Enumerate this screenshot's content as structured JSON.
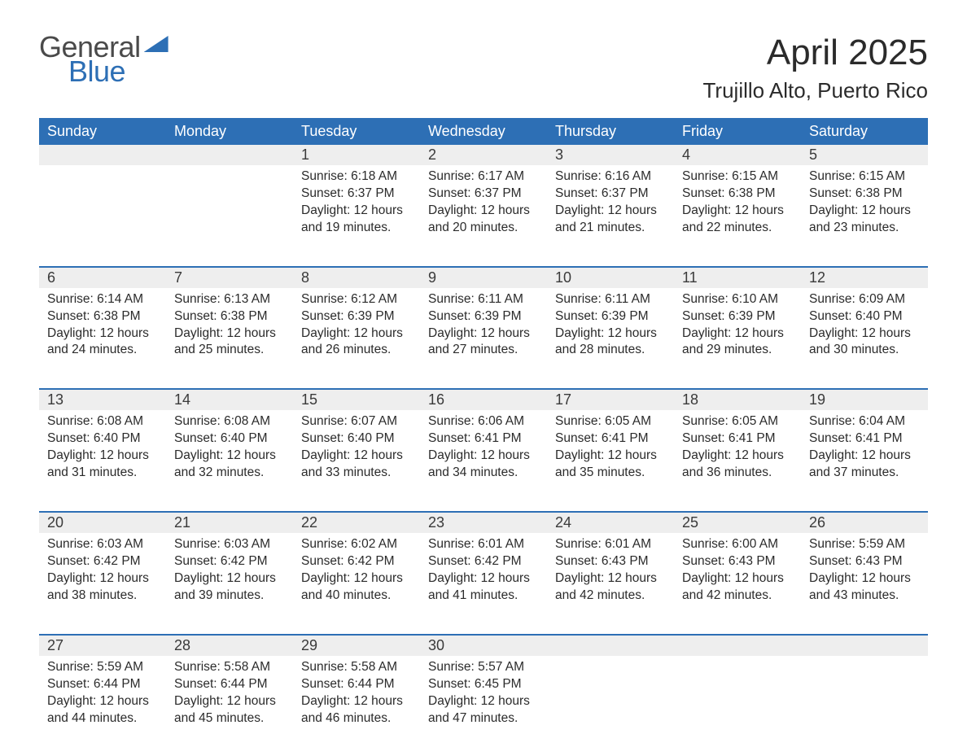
{
  "brand": {
    "word1": "General",
    "word2": "Blue"
  },
  "colors": {
    "brand_blue": "#2d6fb5",
    "brand_gray": "#4a4a4a",
    "text": "#2b2b2b",
    "daynum_bg": "#eeeeee",
    "bg": "#ffffff"
  },
  "header": {
    "month_title": "April 2025",
    "location": "Trujillo Alto, Puerto Rico"
  },
  "days_of_week": [
    "Sunday",
    "Monday",
    "Tuesday",
    "Wednesday",
    "Thursday",
    "Friday",
    "Saturday"
  ],
  "weeks": [
    [
      null,
      null,
      {
        "n": "1",
        "sunrise": "Sunrise: 6:18 AM",
        "sunset": "Sunset: 6:37 PM",
        "daylight": "Daylight: 12 hours and 19 minutes."
      },
      {
        "n": "2",
        "sunrise": "Sunrise: 6:17 AM",
        "sunset": "Sunset: 6:37 PM",
        "daylight": "Daylight: 12 hours and 20 minutes."
      },
      {
        "n": "3",
        "sunrise": "Sunrise: 6:16 AM",
        "sunset": "Sunset: 6:37 PM",
        "daylight": "Daylight: 12 hours and 21 minutes."
      },
      {
        "n": "4",
        "sunrise": "Sunrise: 6:15 AM",
        "sunset": "Sunset: 6:38 PM",
        "daylight": "Daylight: 12 hours and 22 minutes."
      },
      {
        "n": "5",
        "sunrise": "Sunrise: 6:15 AM",
        "sunset": "Sunset: 6:38 PM",
        "daylight": "Daylight: 12 hours and 23 minutes."
      }
    ],
    [
      {
        "n": "6",
        "sunrise": "Sunrise: 6:14 AM",
        "sunset": "Sunset: 6:38 PM",
        "daylight": "Daylight: 12 hours and 24 minutes."
      },
      {
        "n": "7",
        "sunrise": "Sunrise: 6:13 AM",
        "sunset": "Sunset: 6:38 PM",
        "daylight": "Daylight: 12 hours and 25 minutes."
      },
      {
        "n": "8",
        "sunrise": "Sunrise: 6:12 AM",
        "sunset": "Sunset: 6:39 PM",
        "daylight": "Daylight: 12 hours and 26 minutes."
      },
      {
        "n": "9",
        "sunrise": "Sunrise: 6:11 AM",
        "sunset": "Sunset: 6:39 PM",
        "daylight": "Daylight: 12 hours and 27 minutes."
      },
      {
        "n": "10",
        "sunrise": "Sunrise: 6:11 AM",
        "sunset": "Sunset: 6:39 PM",
        "daylight": "Daylight: 12 hours and 28 minutes."
      },
      {
        "n": "11",
        "sunrise": "Sunrise: 6:10 AM",
        "sunset": "Sunset: 6:39 PM",
        "daylight": "Daylight: 12 hours and 29 minutes."
      },
      {
        "n": "12",
        "sunrise": "Sunrise: 6:09 AM",
        "sunset": "Sunset: 6:40 PM",
        "daylight": "Daylight: 12 hours and 30 minutes."
      }
    ],
    [
      {
        "n": "13",
        "sunrise": "Sunrise: 6:08 AM",
        "sunset": "Sunset: 6:40 PM",
        "daylight": "Daylight: 12 hours and 31 minutes."
      },
      {
        "n": "14",
        "sunrise": "Sunrise: 6:08 AM",
        "sunset": "Sunset: 6:40 PM",
        "daylight": "Daylight: 12 hours and 32 minutes."
      },
      {
        "n": "15",
        "sunrise": "Sunrise: 6:07 AM",
        "sunset": "Sunset: 6:40 PM",
        "daylight": "Daylight: 12 hours and 33 minutes."
      },
      {
        "n": "16",
        "sunrise": "Sunrise: 6:06 AM",
        "sunset": "Sunset: 6:41 PM",
        "daylight": "Daylight: 12 hours and 34 minutes."
      },
      {
        "n": "17",
        "sunrise": "Sunrise: 6:05 AM",
        "sunset": "Sunset: 6:41 PM",
        "daylight": "Daylight: 12 hours and 35 minutes."
      },
      {
        "n": "18",
        "sunrise": "Sunrise: 6:05 AM",
        "sunset": "Sunset: 6:41 PM",
        "daylight": "Daylight: 12 hours and 36 minutes."
      },
      {
        "n": "19",
        "sunrise": "Sunrise: 6:04 AM",
        "sunset": "Sunset: 6:41 PM",
        "daylight": "Daylight: 12 hours and 37 minutes."
      }
    ],
    [
      {
        "n": "20",
        "sunrise": "Sunrise: 6:03 AM",
        "sunset": "Sunset: 6:42 PM",
        "daylight": "Daylight: 12 hours and 38 minutes."
      },
      {
        "n": "21",
        "sunrise": "Sunrise: 6:03 AM",
        "sunset": "Sunset: 6:42 PM",
        "daylight": "Daylight: 12 hours and 39 minutes."
      },
      {
        "n": "22",
        "sunrise": "Sunrise: 6:02 AM",
        "sunset": "Sunset: 6:42 PM",
        "daylight": "Daylight: 12 hours and 40 minutes."
      },
      {
        "n": "23",
        "sunrise": "Sunrise: 6:01 AM",
        "sunset": "Sunset: 6:42 PM",
        "daylight": "Daylight: 12 hours and 41 minutes."
      },
      {
        "n": "24",
        "sunrise": "Sunrise: 6:01 AM",
        "sunset": "Sunset: 6:43 PM",
        "daylight": "Daylight: 12 hours and 42 minutes."
      },
      {
        "n": "25",
        "sunrise": "Sunrise: 6:00 AM",
        "sunset": "Sunset: 6:43 PM",
        "daylight": "Daylight: 12 hours and 42 minutes."
      },
      {
        "n": "26",
        "sunrise": "Sunrise: 5:59 AM",
        "sunset": "Sunset: 6:43 PM",
        "daylight": "Daylight: 12 hours and 43 minutes."
      }
    ],
    [
      {
        "n": "27",
        "sunrise": "Sunrise: 5:59 AM",
        "sunset": "Sunset: 6:44 PM",
        "daylight": "Daylight: 12 hours and 44 minutes."
      },
      {
        "n": "28",
        "sunrise": "Sunrise: 5:58 AM",
        "sunset": "Sunset: 6:44 PM",
        "daylight": "Daylight: 12 hours and 45 minutes."
      },
      {
        "n": "29",
        "sunrise": "Sunrise: 5:58 AM",
        "sunset": "Sunset: 6:44 PM",
        "daylight": "Daylight: 12 hours and 46 minutes."
      },
      {
        "n": "30",
        "sunrise": "Sunrise: 5:57 AM",
        "sunset": "Sunset: 6:45 PM",
        "daylight": "Daylight: 12 hours and 47 minutes."
      },
      null,
      null,
      null
    ]
  ]
}
